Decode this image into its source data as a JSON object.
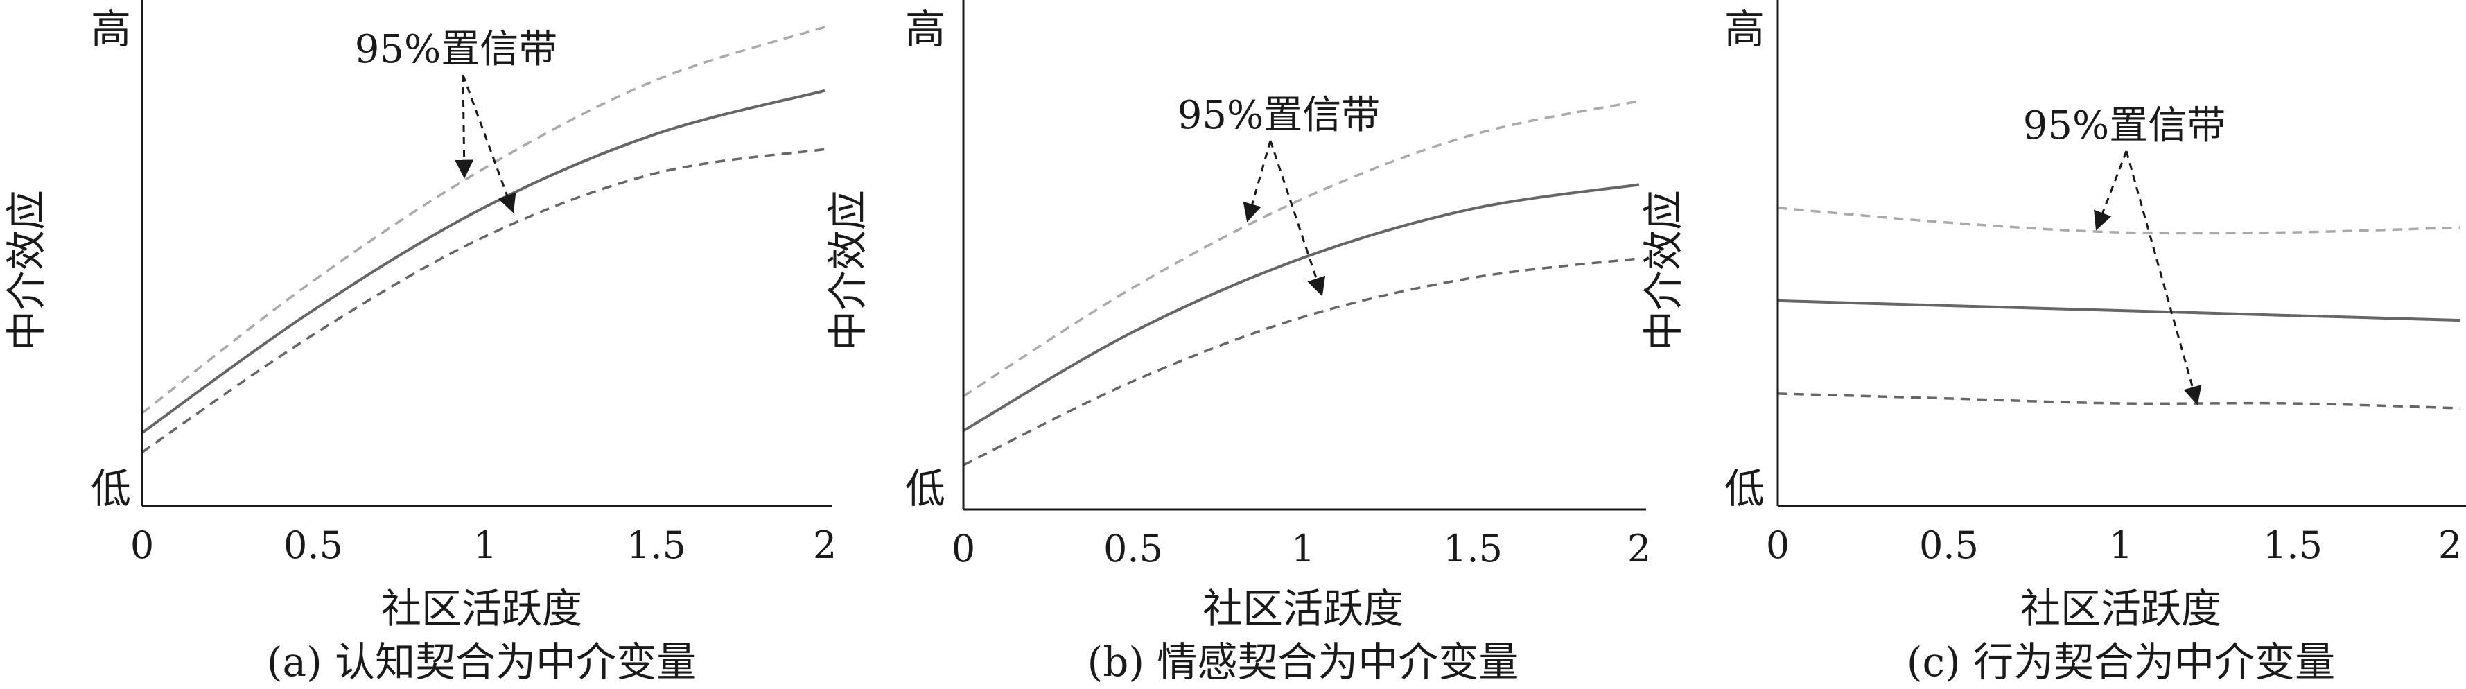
{
  "chart_data": [
    {
      "type": "line",
      "caption": "(a) 认知契合为中介变量",
      "xlabel": "社区活跃度",
      "ylabel": "中介效应",
      "y_top_label": "高",
      "y_bottom_label": "低",
      "x_ticks": [
        "0",
        "0.5",
        "1",
        "1.5",
        "2"
      ],
      "xlim": [
        0,
        2
      ],
      "ylim": [
        0,
        1
      ],
      "annotation": "95%置信带",
      "series": [
        {
          "role": "upper-band",
          "style": "dashed-light",
          "x": [
            0,
            0.5,
            1,
            1.5,
            2
          ],
          "y": [
            0.19,
            0.46,
            0.69,
            0.87,
            0.98
          ]
        },
        {
          "role": "estimate",
          "style": "solid",
          "x": [
            0,
            0.5,
            1,
            1.5,
            2
          ],
          "y": [
            0.15,
            0.4,
            0.61,
            0.76,
            0.85
          ]
        },
        {
          "role": "lower-band",
          "style": "dashed",
          "x": [
            0,
            0.5,
            1,
            1.5,
            2
          ],
          "y": [
            0.11,
            0.35,
            0.55,
            0.68,
            0.73
          ]
        }
      ]
    },
    {
      "type": "line",
      "caption": "(b) 情感契合为中介变量",
      "xlabel": "社区活跃度",
      "ylabel": "中介效应",
      "y_top_label": "高",
      "y_bottom_label": "低",
      "x_ticks": [
        "0",
        "0.5",
        "1",
        "1.5",
        "2"
      ],
      "xlim": [
        0,
        2
      ],
      "ylim": [
        0,
        1
      ],
      "annotation": "95%置信带",
      "series": [
        {
          "role": "upper-band",
          "style": "dashed-light",
          "x": [
            0,
            0.5,
            1,
            1.5,
            2
          ],
          "y": [
            0.23,
            0.45,
            0.63,
            0.76,
            0.83
          ]
        },
        {
          "role": "estimate",
          "style": "solid",
          "x": [
            0,
            0.5,
            1,
            1.5,
            2
          ],
          "y": [
            0.16,
            0.36,
            0.51,
            0.61,
            0.66
          ]
        },
        {
          "role": "lower-band",
          "style": "dashed",
          "x": [
            0,
            0.5,
            1,
            1.5,
            2
          ],
          "y": [
            0.09,
            0.26,
            0.39,
            0.47,
            0.51
          ]
        }
      ]
    },
    {
      "type": "line",
      "caption": "(c) 行为契合为中介变量",
      "xlabel": "社区活跃度",
      "ylabel": "中介效应",
      "y_top_label": "高",
      "y_bottom_label": "低",
      "x_ticks": [
        "0",
        "0.5",
        "1",
        "1.5",
        "2"
      ],
      "xlim": [
        0,
        2
      ],
      "ylim": [
        0,
        1
      ],
      "annotation": "95%置信带",
      "series": [
        {
          "role": "upper-band",
          "style": "dashed-light",
          "x": [
            0,
            0.5,
            1,
            1.5,
            2
          ],
          "y": [
            0.61,
            0.58,
            0.56,
            0.56,
            0.57
          ]
        },
        {
          "role": "estimate",
          "style": "solid",
          "x": [
            0,
            0.5,
            1,
            1.5,
            2
          ],
          "y": [
            0.42,
            0.41,
            0.4,
            0.39,
            0.38
          ]
        },
        {
          "role": "lower-band",
          "style": "dashed",
          "x": [
            0,
            0.5,
            1,
            1.5,
            2
          ],
          "y": [
            0.23,
            0.22,
            0.21,
            0.21,
            0.2
          ]
        }
      ]
    }
  ],
  "colors": {
    "axis": "#1a1a1a",
    "estimate": "#666666",
    "upper_band": "#aaaaaa",
    "lower_band": "#666666",
    "arrow": "#1a1a1a"
  }
}
